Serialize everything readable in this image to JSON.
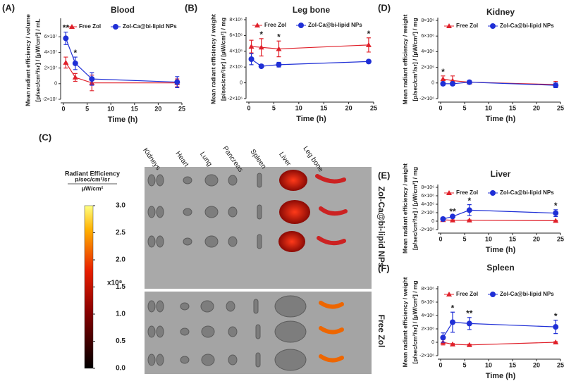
{
  "chart_data": [
    {
      "type": "line",
      "label": "(A)",
      "title": "Blood",
      "ylabel": [
        "Mean radiant efficiency / volume",
        "[p/sec/cm²/sr] / [µW/cm²] / mL"
      ],
      "xlabel": "Time (h)",
      "x": [
        0.5,
        2.5,
        6,
        24
      ],
      "xlim": [
        0,
        25
      ],
      "xticks": [
        0,
        5,
        10,
        15,
        20,
        25
      ],
      "ylim": [
        -20000000,
        80000000
      ],
      "yticks": [
        {
          "value": -20000000,
          "label": "-2×10⁷"
        },
        0,
        {
          "value": 20000000,
          "label": "2×10⁷"
        },
        {
          "value": 40000000,
          "label": "4×10⁷"
        },
        {
          "value": 60000000,
          "label": "6×10⁷"
        }
      ],
      "legend": "top",
      "series": [
        {
          "name": "Free Zol",
          "color": "#e0202a",
          "marker": "triangle",
          "values": [
            27000000,
            8000000,
            1000000,
            1000000
          ],
          "errors": [
            7000000,
            5000000,
            10000000,
            5000000
          ]
        },
        {
          "name": "Zol-Ca@bi-lipid NPs",
          "color": "#1f2fd6",
          "marker": "circle",
          "values": [
            58000000,
            26000000,
            6000000,
            2000000
          ],
          "errors": [
            8000000,
            8000000,
            8000000,
            7000000
          ]
        }
      ],
      "annotations": [
        {
          "x": 0.5,
          "text": "**"
        },
        {
          "x": 2.5,
          "text": "*"
        }
      ]
    },
    {
      "type": "line",
      "label": "(B)",
      "title": "Leg bone",
      "ylabel": [
        "Mean radiant efficiency / weight",
        "[p/sec/cm²/sr] / [µW/cm²] / mg"
      ],
      "xlabel": "Time (h)",
      "x": [
        0.5,
        2.5,
        6,
        24
      ],
      "xlim": [
        0,
        25
      ],
      "xticks": [
        0,
        5,
        10,
        15,
        20,
        25
      ],
      "ylim": [
        -2000000,
        8000000
      ],
      "yticks": [
        {
          "value": -2000000,
          "label": "-2×10⁶"
        },
        0,
        {
          "value": 2000000,
          "label": "2×10⁶"
        },
        {
          "value": 4000000,
          "label": "4×10⁶"
        },
        {
          "value": 6000000,
          "label": "6×10⁶"
        },
        {
          "value": 8000000,
          "label": "8×10⁶"
        }
      ],
      "legend": "top",
      "series": [
        {
          "name": "Free Zol",
          "color": "#e0202a",
          "marker": "triangle",
          "values": [
            4600000,
            4500000,
            4300000,
            4800000
          ],
          "errors": [
            800000,
            1100000,
            1000000,
            900000
          ]
        },
        {
          "name": "Zol-Ca@bi-lipid NPs",
          "color": "#1f2fd6",
          "marker": "circle",
          "values": [
            3000000,
            2100000,
            2300000,
            2700000
          ],
          "errors": [
            700000,
            200000,
            300000,
            200000
          ]
        }
      ],
      "annotations": [
        {
          "x": 2.5,
          "text": "*"
        },
        {
          "x": 6,
          "text": "*"
        },
        {
          "x": 24,
          "text": "*"
        }
      ]
    },
    {
      "type": "line",
      "label": "(D)",
      "title": "Kidney",
      "ylabel": [
        "Mean radiant efficiency / weight",
        "[p/sec/cm²/sr] / [µW/cm²] / mg"
      ],
      "xlabel": "Time (h)",
      "x": [
        0.5,
        2.5,
        6,
        24
      ],
      "xlim": [
        0,
        25
      ],
      "xticks": [
        0,
        5,
        10,
        15,
        20,
        25
      ],
      "ylim": [
        -2000000,
        8000000
      ],
      "yticks": [
        {
          "value": -2000000,
          "label": "-2×10⁶"
        },
        0,
        {
          "value": 2000000,
          "label": "2×10⁶"
        },
        {
          "value": 4000000,
          "label": "4×10⁶"
        },
        {
          "value": 6000000,
          "label": "6×10⁶"
        },
        {
          "value": 8000000,
          "label": "8×10⁶"
        }
      ],
      "legend": "top",
      "series": [
        {
          "name": "Free Zol",
          "color": "#e0202a",
          "marker": "triangle",
          "values": [
            500000,
            300000,
            100000,
            -200000
          ],
          "errors": [
            400000,
            600000,
            200000,
            400000
          ]
        },
        {
          "name": "Zol-Ca@bi-lipid NPs",
          "color": "#1f2fd6",
          "marker": "circle",
          "values": [
            -100000,
            -100000,
            100000,
            -300000
          ],
          "errors": [
            200000,
            200000,
            200000,
            300000
          ]
        }
      ],
      "annotations": [
        {
          "x": 0.5,
          "text": "*"
        }
      ]
    },
    {
      "type": "line",
      "label": "(E)",
      "title": "Liver",
      "ylabel": [
        "Mean radiant efficiency / weight",
        "[p/sec/cm²/sr] / [µW/cm²] / mg"
      ],
      "xlabel": "Time (h)",
      "x": [
        0.5,
        2.5,
        6,
        24
      ],
      "xlim": [
        0,
        25
      ],
      "xticks": [
        0,
        5,
        10,
        15,
        20,
        25
      ],
      "ylim": [
        -2000000,
        8000000
      ],
      "yticks": [
        {
          "value": -2000000,
          "label": "-2×10⁶"
        },
        0,
        {
          "value": 2000000,
          "label": "2×10⁶"
        },
        {
          "value": 4000000,
          "label": "4×10⁶"
        },
        {
          "value": 6000000,
          "label": "6×10⁶"
        },
        {
          "value": 8000000,
          "label": "8×10⁶"
        }
      ],
      "legend": "top",
      "series": [
        {
          "name": "Free Zol",
          "color": "#e0202a",
          "marker": "triangle",
          "values": [
            300000,
            200000,
            200000,
            100000
          ],
          "errors": [
            100000,
            100000,
            100000,
            100000
          ]
        },
        {
          "name": "Zol-Ca@bi-lipid NPs",
          "color": "#1f2fd6",
          "marker": "circle",
          "values": [
            500000,
            1100000,
            2600000,
            1900000
          ],
          "errors": [
            400000,
            200000,
            1300000,
            800000
          ]
        }
      ],
      "annotations": [
        {
          "x": 2.5,
          "text": "**"
        },
        {
          "x": 6,
          "text": "*"
        },
        {
          "x": 24,
          "text": "*"
        }
      ]
    },
    {
      "type": "line",
      "label": "(F)",
      "title": "Spleen",
      "ylabel": [
        "Mean radiant efficiency / weight",
        "[p/sec/cm²/sr] / [µW/cm²] / mg"
      ],
      "xlabel": "Time (h)",
      "x": [
        0.5,
        2.5,
        6,
        24
      ],
      "xlim": [
        0,
        25
      ],
      "xticks": [
        0,
        5,
        10,
        15,
        20,
        25
      ],
      "ylim": [
        -2000000,
        8000000
      ],
      "yticks": [
        {
          "value": -2000000,
          "label": "-2×10⁶"
        },
        0,
        {
          "value": 2000000,
          "label": "2×10⁶"
        },
        {
          "value": 4000000,
          "label": "4×10⁶"
        },
        {
          "value": 6000000,
          "label": "6×10⁶"
        },
        {
          "value": 8000000,
          "label": "8×10⁶"
        }
      ],
      "legend": "top",
      "series": [
        {
          "name": "Free Zol",
          "color": "#e0202a",
          "marker": "triangle",
          "values": [
            0,
            -300000,
            -400000,
            0
          ],
          "errors": [
            400000,
            100000,
            100000,
            100000
          ]
        },
        {
          "name": "Zol-Ca@bi-lipid NPs",
          "color": "#1f2fd6",
          "marker": "circle",
          "values": [
            700000,
            3000000,
            2800000,
            2300000
          ],
          "errors": [
            700000,
            1500000,
            900000,
            1000000
          ]
        }
      ],
      "annotations": [
        {
          "x": 2.5,
          "text": "*"
        },
        {
          "x": 6,
          "text": "**"
        },
        {
          "x": 24,
          "text": "*"
        }
      ]
    }
  ],
  "imaging": {
    "label": "(C)",
    "colorbar_title": "Radiant Efficiency",
    "colorbar_unit_top": "p/sec/cm²/sr",
    "colorbar_unit_bottom": "μW/cm²",
    "colorbar_scale": "x10⁸",
    "colorbar_lim": [
      0,
      3
    ],
    "colorbar_ticks": [
      {
        "value": 0,
        "label": "0.0"
      },
      {
        "value": 0.5,
        "label": "0.5"
      },
      {
        "value": 1,
        "label": "1.0"
      },
      {
        "value": 1.5,
        "label": "1.5"
      },
      {
        "value": 2,
        "label": "2.0"
      },
      {
        "value": 2.5,
        "label": "2.5"
      },
      {
        "value": 3,
        "label": "3.0"
      }
    ],
    "organs": [
      "Kidneys",
      "Heart",
      "Lung",
      "Pancreas",
      "Spleen",
      "Liver",
      "Leg bone"
    ],
    "groups": [
      "Zol-Ca@bi-lipid NPs",
      "Free Zol"
    ]
  }
}
